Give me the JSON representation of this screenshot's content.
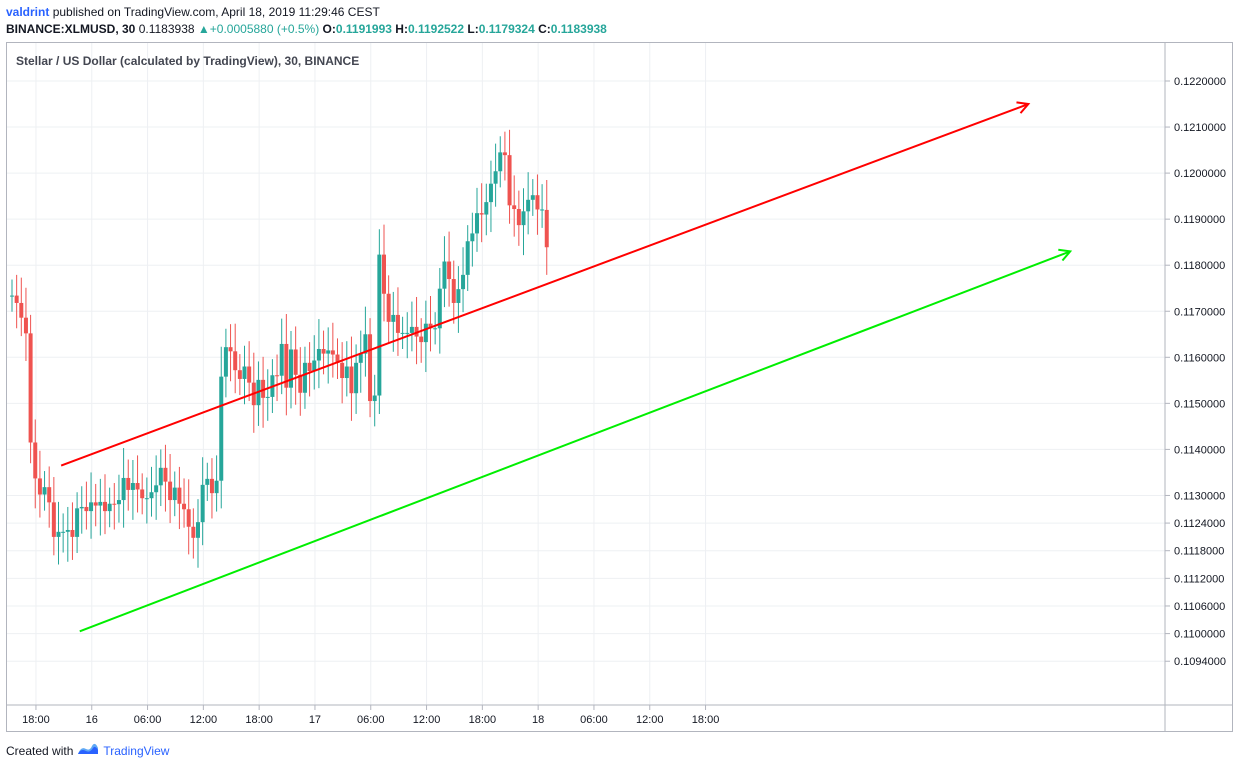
{
  "header": {
    "user": "valdrint",
    "published_text": "published on TradingView.com, April 18, 2019 11:29:46 CEST",
    "symbol": "BINANCE:XLMUSD, 30",
    "last": "0.1183938",
    "change": "+0.0005880 (+0.5%)",
    "o_label": "O:",
    "o_value": "0.1191993",
    "h_label": "H:",
    "h_value": "0.1192522",
    "l_label": "L:",
    "l_value": "0.1179324",
    "c_label": "C:",
    "c_value": "0.1183938"
  },
  "footer": {
    "created_with": "Created with",
    "brand": "TradingView"
  },
  "colors": {
    "up": "#26a69a",
    "down": "#ef5350",
    "upper_channel": "#ff0000",
    "lower_channel": "#00ee00",
    "grid": "#eef0f3"
  },
  "chart_data": {
    "type": "candlestick",
    "title": "Stellar / US Dollar (calculated by TradingView), 30, BINANCE",
    "interval_minutes": 30,
    "x_ticks": [
      "18:00",
      "16",
      "06:00",
      "12:00",
      "18:00",
      "17",
      "06:00",
      "12:00",
      "18:00",
      "18",
      "06:00",
      "12:00",
      "18:00"
    ],
    "y_ticks": [
      "0.1220000",
      "0.1210000",
      "0.1200000",
      "0.1190000",
      "0.1180000",
      "0.1170000",
      "0.1160000",
      "0.1150000",
      "0.1140000",
      "0.1130000",
      "0.1124000",
      "0.1118000",
      "0.1112000",
      "0.1106000",
      "0.1100000",
      "0.1094000"
    ],
    "y_tick_values": [
      0.122,
      0.121,
      0.12,
      0.119,
      0.118,
      0.117,
      0.116,
      0.115,
      0.114,
      0.113,
      0.1124,
      0.1118,
      0.1112,
      0.1106,
      0.11,
      0.1094
    ],
    "first_candle_time": "2019-04-15 16:30",
    "candles_close": [
      0.11734,
      0.11718,
      0.11686,
      0.11652,
      0.11415,
      0.11337,
      0.11302,
      0.11318,
      0.11285,
      0.1121,
      0.11221,
      0.11221,
      0.11225,
      0.1121,
      0.11272,
      0.11275,
      0.11266,
      0.11285,
      0.11278,
      0.11286,
      0.11266,
      0.11282,
      0.11281,
      0.1129,
      0.11338,
      0.11312,
      0.11327,
      0.11313,
      0.11294,
      0.11294,
      0.11307,
      0.11322,
      0.1136,
      0.1133,
      0.1129,
      0.11317,
      0.11282,
      0.1127,
      0.11232,
      0.11208,
      0.11242,
      0.11323,
      0.11336,
      0.11305,
      0.11332,
      0.11558,
      0.11622,
      0.11613,
      0.11572,
      0.11553,
      0.1158,
      0.11545,
      0.11496,
      0.11551,
      0.11512,
      0.11514,
      0.11561,
      0.1156,
      0.11629,
      0.11534,
      0.11617,
      0.11562,
      0.11523,
      0.11588,
      0.1157,
      0.11593,
      0.11618,
      0.11608,
      0.11615,
      0.11606,
      0.11588,
      0.11555,
      0.1158,
      0.11522,
      0.11588,
      0.11608,
      0.1165,
      0.11505,
      0.11517,
      0.11823,
      0.11738,
      0.11677,
      0.11692,
      0.11653,
      0.11653,
      0.11653,
      0.11666,
      0.11645,
      0.11633,
      0.11673,
      0.11663,
      0.11663,
      0.11749,
      0.11808,
      0.1177,
      0.11718,
      0.11748,
      0.11779,
      0.11852,
      0.11869,
      0.11913,
      0.1191,
      0.11937,
      0.11977,
      0.12004,
      0.12045,
      0.12039,
      0.1193,
      0.11922,
      0.11887,
      0.11917,
      0.11942,
      0.11952,
      0.11921,
      0.11921,
      0.11839
    ],
    "candles_open": [
      0.11734,
      0.11734,
      0.11718,
      0.11686,
      0.11652,
      0.11415,
      0.11337,
      0.11302,
      0.11318,
      0.11285,
      0.1121,
      0.11221,
      0.11221,
      0.11225,
      0.1121,
      0.11272,
      0.11275,
      0.11266,
      0.11285,
      0.11278,
      0.11286,
      0.11266,
      0.11282,
      0.11281,
      0.1129,
      0.11338,
      0.11312,
      0.11327,
      0.11313,
      0.11294,
      0.11294,
      0.11307,
      0.11322,
      0.1136,
      0.1133,
      0.1129,
      0.11317,
      0.11282,
      0.1127,
      0.11232,
      0.11208,
      0.11242,
      0.11323,
      0.11336,
      0.11305,
      0.11332,
      0.11558,
      0.11622,
      0.11613,
      0.11572,
      0.11553,
      0.1158,
      0.11545,
      0.11496,
      0.11551,
      0.11512,
      0.11514,
      0.11561,
      0.1156,
      0.11629,
      0.11534,
      0.11617,
      0.11562,
      0.11523,
      0.11588,
      0.1157,
      0.11593,
      0.11618,
      0.11608,
      0.11615,
      0.11606,
      0.11588,
      0.11555,
      0.1158,
      0.11522,
      0.11588,
      0.11608,
      0.1165,
      0.11505,
      0.11517,
      0.11823,
      0.11738,
      0.11677,
      0.11692,
      0.11653,
      0.11653,
      0.11653,
      0.11666,
      0.11645,
      0.11633,
      0.11673,
      0.11663,
      0.11663,
      0.11749,
      0.11808,
      0.1177,
      0.11718,
      0.11748,
      0.11779,
      0.11852,
      0.11869,
      0.11913,
      0.1191,
      0.11937,
      0.11977,
      0.12004,
      0.12045,
      0.12039,
      0.1193,
      0.11922,
      0.11887,
      0.11917,
      0.11942,
      0.11952,
      0.11921,
      0.1192
    ],
    "upper_channel": {
      "from": [
        0.11365,
        11
      ],
      "to": [
        0.1215,
        219
      ],
      "color": "#ff0000"
    },
    "lower_channel": {
      "from": [
        0.11005,
        15
      ],
      "to": [
        0.1183,
        228
      ],
      "color": "#00ee00"
    }
  }
}
